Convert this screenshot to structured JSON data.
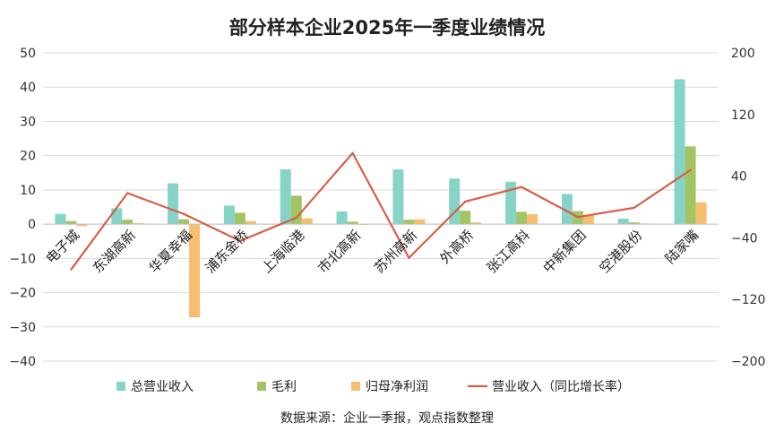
{
  "chart_data": {
    "type": "bar",
    "title": "部分样本企业2025年一季度业绩情况",
    "source": "数据来源：企业一季报，观点指数整理",
    "categories": [
      "电子城",
      "东湖高新",
      "华夏幸福",
      "浦东金桥",
      "上海临港",
      "市北高新",
      "苏州高新",
      "外高桥",
      "张江高科",
      "中新集团",
      "空港股份",
      "陆家嘴"
    ],
    "left_axis": {
      "min": -40,
      "max": 50,
      "step": 10,
      "ticks": [
        "50",
        "40",
        "30",
        "20",
        "10",
        "0",
        "−10",
        "−20",
        "−30",
        "−40"
      ]
    },
    "right_axis": {
      "min": -200,
      "max": 200,
      "step": 80,
      "ticks": [
        "200",
        "120",
        "40",
        "−40",
        "−120",
        "−200"
      ]
    },
    "series": [
      {
        "name": "总营业收入",
        "kind": "bar",
        "axis": "left",
        "color": "#86D3C8",
        "values": [
          3.0,
          4.6,
          11.9,
          5.4,
          16.0,
          3.7,
          16.0,
          13.3,
          12.4,
          8.8,
          1.6,
          42.3
        ]
      },
      {
        "name": "毛利",
        "kind": "bar",
        "axis": "left",
        "color": "#A2C562",
        "values": [
          0.9,
          1.3,
          1.4,
          3.3,
          8.3,
          0.7,
          1.3,
          3.9,
          3.6,
          3.8,
          0.5,
          22.7
        ]
      },
      {
        "name": "归母净利润",
        "kind": "bar",
        "axis": "left",
        "color": "#F7BE70",
        "values": [
          -0.6,
          0.3,
          -27.2,
          0.9,
          1.7,
          -0.2,
          1.4,
          0.5,
          2.9,
          2.6,
          0.2,
          6.4
        ]
      },
      {
        "name": "营业收入（同比增长率）",
        "kind": "line",
        "axis": "right",
        "color": "#D65F48",
        "values": [
          -81,
          18,
          -9,
          -44,
          -14,
          70,
          -66,
          7,
          26,
          -13,
          -1,
          48
        ]
      }
    ],
    "legend_position": "bottom",
    "grid": true
  }
}
